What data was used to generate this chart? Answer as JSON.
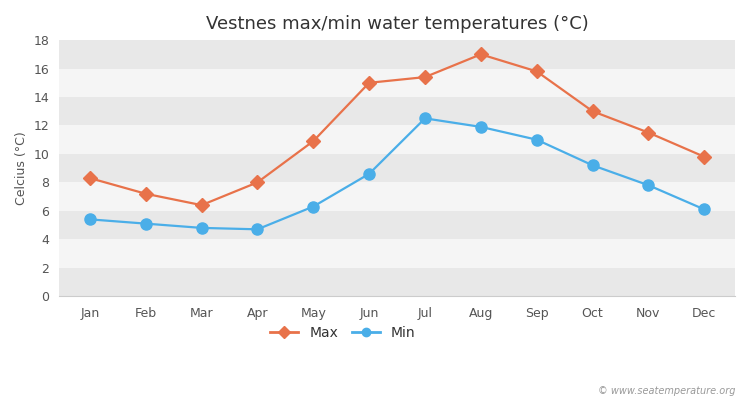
{
  "title": "Vestnes max/min water temperatures (°C)",
  "months": [
    "Jan",
    "Feb",
    "Mar",
    "Apr",
    "May",
    "Jun",
    "Jul",
    "Aug",
    "Sep",
    "Oct",
    "Nov",
    "Dec"
  ],
  "max_values": [
    8.3,
    7.2,
    6.4,
    8.0,
    10.9,
    15.0,
    15.4,
    17.0,
    15.8,
    13.0,
    11.5,
    9.8
  ],
  "min_values": [
    5.4,
    5.1,
    4.8,
    4.7,
    6.3,
    8.6,
    12.5,
    11.9,
    11.0,
    9.2,
    7.8,
    6.1
  ],
  "max_color": "#e8724a",
  "min_color": "#4aaee8",
  "ylabel": "Celcius (°C)",
  "ylim": [
    0,
    18
  ],
  "yticks": [
    0,
    2,
    4,
    6,
    8,
    10,
    12,
    14,
    16,
    18
  ],
  "figure_bg_color": "#ffffff",
  "plot_bg_color": "#ffffff",
  "band_colors": [
    "#e8e8e8",
    "#f5f5f5"
  ],
  "watermark": "© www.seatemperature.org",
  "title_fontsize": 13,
  "axis_label_fontsize": 9,
  "tick_fontsize": 9,
  "legend_fontsize": 10,
  "marker_size_max": 7,
  "marker_size_min": 8
}
